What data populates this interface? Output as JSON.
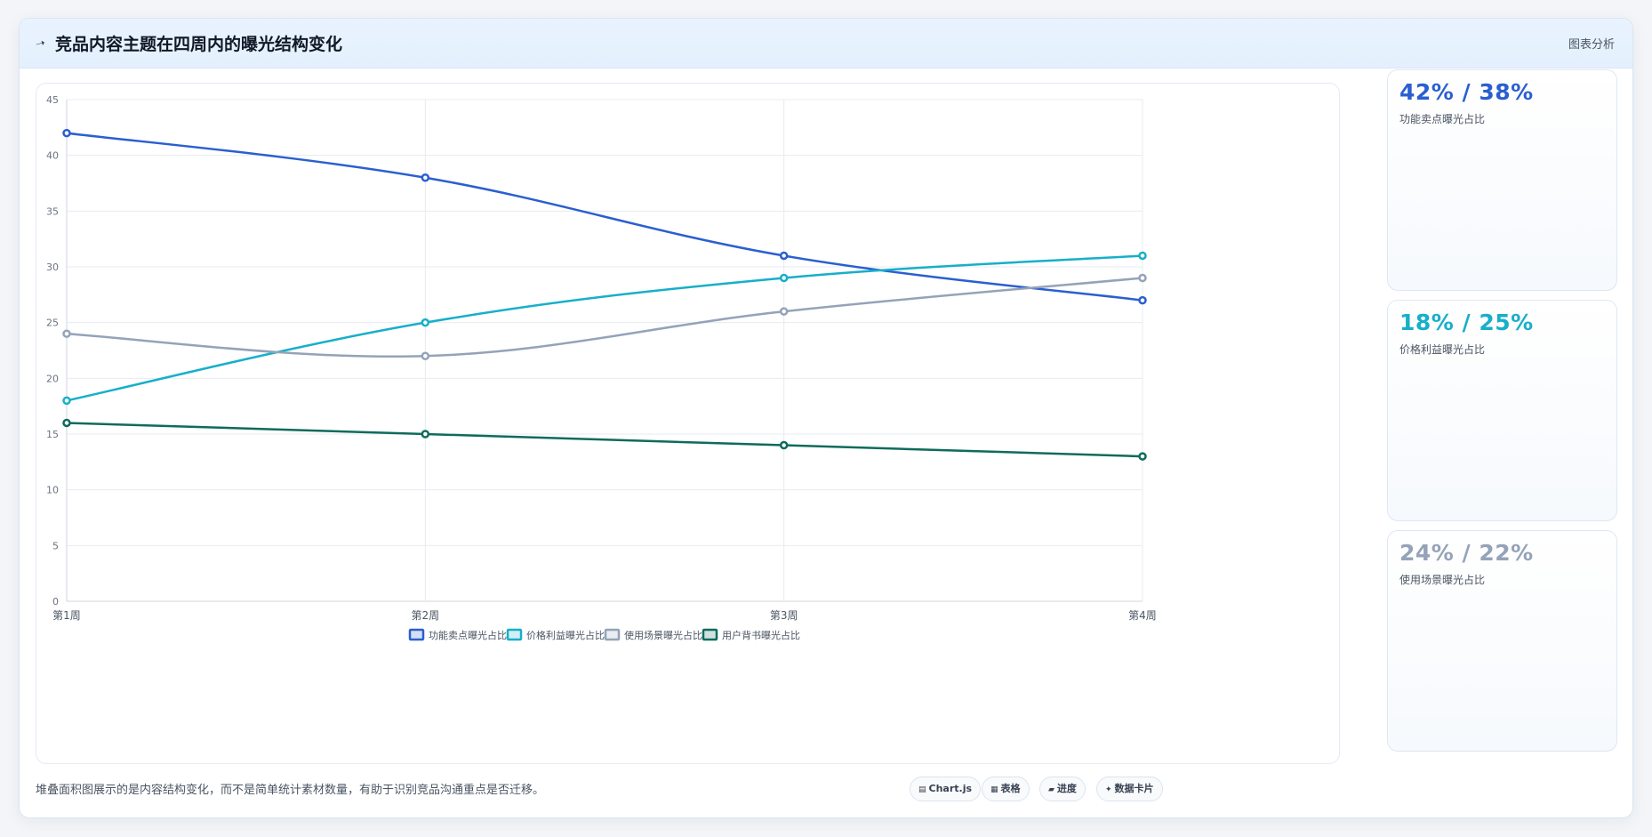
{
  "header": {
    "icon": "pin-icon",
    "title": "竞品内容主题在四周内的曝光结构变化",
    "action_label": "图表分析"
  },
  "chart_data": {
    "type": "line",
    "title": "",
    "xlabel": "",
    "ylabel": "",
    "x": [
      "第1周",
      "第2周",
      "第3周",
      "第4周"
    ],
    "ylim": [
      0,
      45
    ],
    "yticks": [
      0,
      5,
      10,
      15,
      20,
      25,
      30,
      35,
      40,
      45
    ],
    "grid": true,
    "legend": "bottom",
    "series": [
      {
        "name": "功能卖点曝光占比",
        "color": "#2a5fd0",
        "values": [
          42,
          38,
          31,
          27
        ]
      },
      {
        "name": "价格利益曝光占比",
        "color": "#17afc9",
        "values": [
          18,
          25,
          29,
          31
        ]
      },
      {
        "name": "使用场景曝光占比",
        "color": "#94a3b8",
        "values": [
          24,
          22,
          26,
          29
        ]
      },
      {
        "name": "用户背书曝光占比",
        "color": "#0f6b5c",
        "values": [
          16,
          15,
          14,
          13
        ]
      }
    ]
  },
  "stats": [
    {
      "value": "42% / 38%",
      "label": "功能卖点曝光占比",
      "color": "#2a5fd0"
    },
    {
      "value": "18% / 25%",
      "label": "价格利益曝光占比",
      "color": "#17afc9"
    },
    {
      "value": "24% / 22%",
      "label": "使用场景曝光占比",
      "color": "#94a3b8"
    }
  ],
  "footnote": "堆叠面积图展示的是内容结构变化，而不是简单统计素材数量，有助于识别竞品沟通重点是否迁移。",
  "tags": [
    {
      "icon": "chart-icon",
      "glyph": "▤",
      "label": "Chart.js"
    },
    {
      "icon": "table-icon",
      "glyph": "▦",
      "label": "表格"
    },
    {
      "icon": "progress-icon",
      "glyph": "▰",
      "label": "进度"
    },
    {
      "icon": "sparkle-icon",
      "glyph": "✦",
      "label": "数据卡片"
    }
  ]
}
